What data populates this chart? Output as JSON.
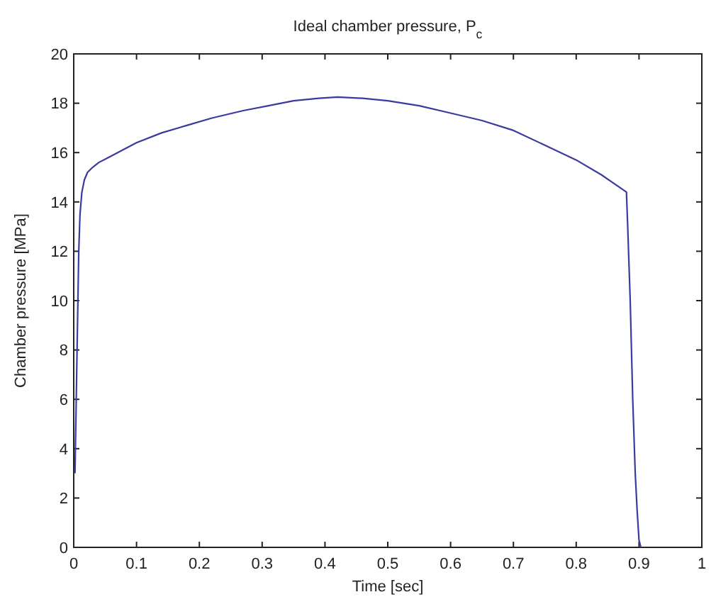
{
  "chart_data": {
    "type": "line",
    "title": "Ideal chamber pressure, P$_{c}$",
    "xlabel": "Time [sec]",
    "ylabel": "Chamber pressure [MPa]",
    "x": [
      0.002,
      0.004,
      0.006,
      0.008,
      0.01,
      0.013,
      0.017,
      0.022,
      0.03,
      0.04,
      0.055,
      0.07,
      0.1,
      0.14,
      0.18,
      0.22,
      0.27,
      0.31,
      0.35,
      0.39,
      0.42,
      0.46,
      0.5,
      0.55,
      0.6,
      0.65,
      0.7,
      0.75,
      0.8,
      0.84,
      0.88,
      0.882,
      0.886,
      0.89,
      0.894,
      0.897,
      0.9,
      0.903
    ],
    "series": [
      {
        "color": "#3a3aa0",
        "values": [
          3,
          6,
          9,
          12,
          13.5,
          14.4,
          14.9,
          15.2,
          15.4,
          15.6,
          15.8,
          16,
          16.4,
          16.8,
          17.1,
          17.4,
          17.7,
          17.9,
          18.1,
          18.2,
          18.25,
          18.2,
          18.1,
          17.9,
          17.6,
          17.3,
          16.9,
          16.3,
          15.7,
          15.1,
          14.4,
          13,
          10,
          6,
          3,
          1.5,
          0.3,
          0
        ]
      }
    ],
    "xlim": [
      0,
      1
    ],
    "ylim": [
      0,
      20
    ],
    "xticks": [
      0,
      0.1,
      0.2,
      0.3,
      0.4,
      0.5,
      0.6,
      0.7,
      0.8,
      0.9,
      1
    ],
    "yticks": [
      0,
      2,
      4,
      6,
      8,
      10,
      12,
      14,
      16,
      18,
      20
    ],
    "grid": false,
    "marker": "none",
    "line_style": "solid"
  }
}
